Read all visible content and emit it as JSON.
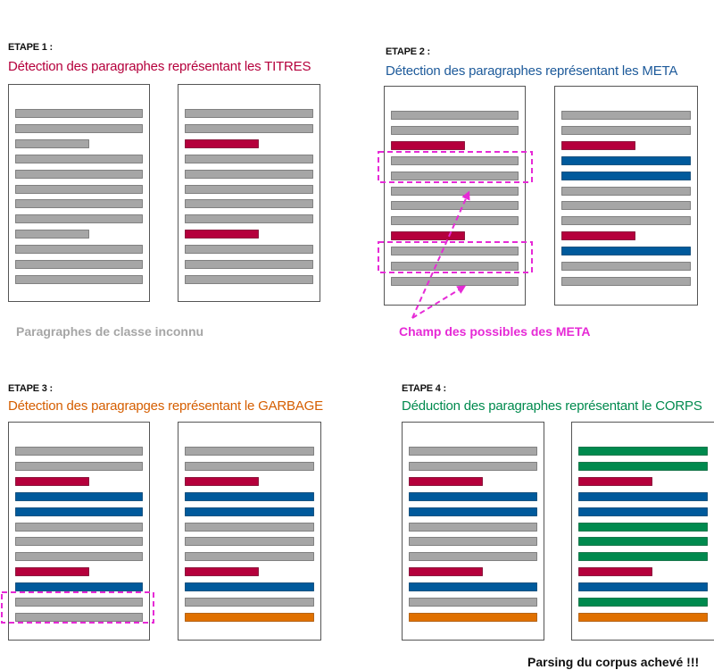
{
  "colors": {
    "unknown": "#a6a6a6",
    "titre": "#b5003c",
    "meta": "#005a9c",
    "garbage": "#e07000",
    "corps": "#008a4e",
    "highlight": "#e62ad6",
    "page_border": "#555555"
  },
  "steps": [
    {
      "label": "ETAPE 1 :",
      "title": "Détection des paragraphes représentant les TITRES",
      "title_color": "#b5003c"
    },
    {
      "label": "ETAPE 2 :",
      "title": "Détection des paragraphes représentant les META",
      "title_color": "#1d5a9a"
    },
    {
      "label": "ETAPE 3 :",
      "title": "Détection des paragrapges représentant le GARBAGE",
      "title_color": "#d55e00"
    },
    {
      "label": "ETAPE 4 :",
      "title": "Déduction des paragraphes représentant le CORPS",
      "title_color": "#008a4e"
    }
  ],
  "notes": {
    "unknown_class": "Paragraphes de classe inconnu",
    "meta_field": "Champ des possibles des META",
    "done": "Parsing du corpus achevé !!!"
  },
  "pages": [
    {
      "step": 1,
      "side": "left",
      "lines": [
        "u",
        "u",
        "us",
        "u",
        "u",
        "u",
        "u",
        "u",
        "us",
        "u",
        "u",
        "u"
      ]
    },
    {
      "step": 1,
      "side": "right",
      "lines": [
        "u",
        "u",
        "ts",
        "u",
        "u",
        "u",
        "u",
        "u",
        "ts",
        "u",
        "u",
        "u"
      ]
    },
    {
      "step": 2,
      "side": "left",
      "lines": [
        "u",
        "u",
        "ts",
        "u",
        "u",
        "u",
        "u",
        "u",
        "ts",
        "u",
        "u",
        "u"
      ]
    },
    {
      "step": 2,
      "side": "right",
      "lines": [
        "u",
        "u",
        "ts",
        "m",
        "m",
        "u",
        "u",
        "u",
        "ts",
        "m",
        "u",
        "u"
      ]
    },
    {
      "step": 3,
      "side": "left",
      "lines": [
        "u",
        "u",
        "ts",
        "m",
        "m",
        "u",
        "u",
        "u",
        "ts",
        "m",
        "u",
        "u"
      ]
    },
    {
      "step": 3,
      "side": "right",
      "lines": [
        "u",
        "u",
        "ts",
        "m",
        "m",
        "u",
        "u",
        "u",
        "ts",
        "m",
        "u",
        "g"
      ]
    },
    {
      "step": 4,
      "side": "left",
      "lines": [
        "u",
        "u",
        "ts",
        "m",
        "m",
        "u",
        "u",
        "u",
        "ts",
        "m",
        "u",
        "g"
      ]
    },
    {
      "step": 4,
      "side": "right",
      "lines": [
        "c",
        "c",
        "ts",
        "m",
        "m",
        "c",
        "c",
        "c",
        "ts",
        "m",
        "c",
        "g"
      ]
    }
  ]
}
